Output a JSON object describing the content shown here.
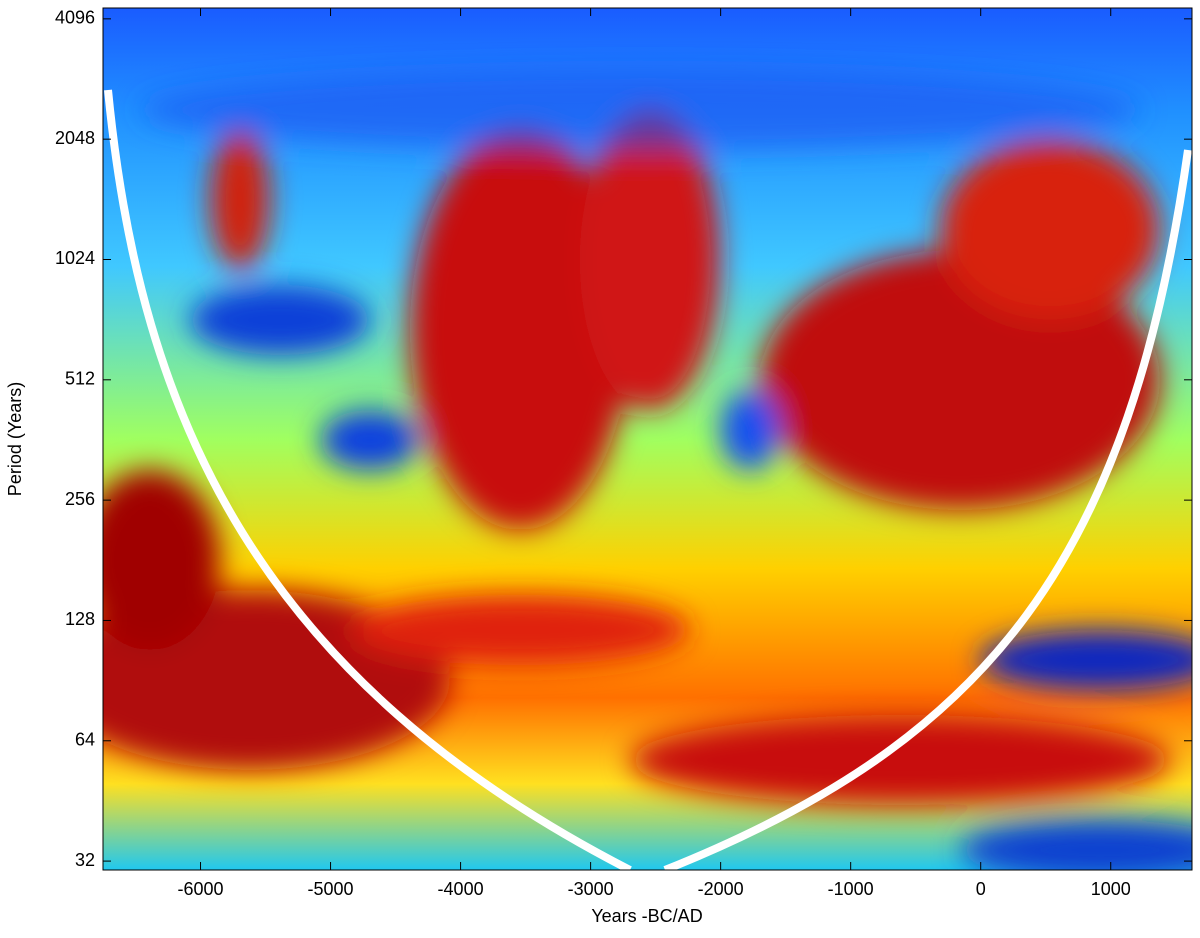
{
  "chart_data": {
    "type": "heatmap",
    "xlabel": "Years -BC/AD",
    "ylabel": "Period (Years)",
    "xlim": [
      -6750,
      1625
    ],
    "xticks": [
      -6000,
      -5000,
      -4000,
      -3000,
      -2000,
      -1000,
      0,
      1000
    ],
    "ylim": [
      30.4,
      4360
    ],
    "yticks": [
      32,
      64,
      128,
      256,
      512,
      1024,
      2048,
      4096
    ],
    "yscale": "log"
  }
}
